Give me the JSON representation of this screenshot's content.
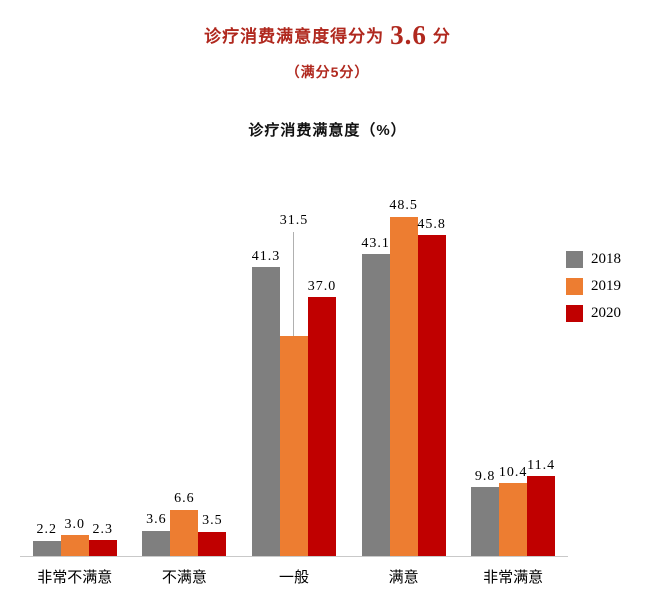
{
  "header": {
    "title_prefix": "诊疗消费满意度得分为",
    "title_score": "3.6",
    "title_suffix": "分",
    "subtitle": "（满分5分）",
    "accent_color": "#b0281e"
  },
  "chart_data": {
    "type": "bar",
    "title": "诊疗消费满意度（%）",
    "categories": [
      "非常不满意",
      "不满意",
      "一般",
      "满意",
      "非常满意"
    ],
    "series": [
      {
        "name": "2018",
        "color": "#7f7f7f",
        "values": [
          2.2,
          3.6,
          41.3,
          43.1,
          9.8
        ]
      },
      {
        "name": "2019",
        "color": "#ed7d31",
        "values": [
          3.0,
          6.6,
          31.5,
          48.5,
          10.4
        ]
      },
      {
        "name": "2020",
        "color": "#c00000",
        "values": [
          2.3,
          3.5,
          37.0,
          45.8,
          11.4
        ]
      }
    ],
    "ylim": [
      0,
      50
    ],
    "value_label_decimals": 1,
    "value_labels": true,
    "grid": false,
    "legend_position": "right",
    "callout_label": {
      "series": "2019",
      "category": "一般"
    }
  }
}
